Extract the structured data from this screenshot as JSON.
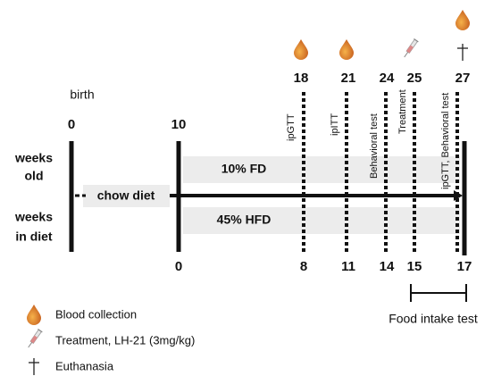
{
  "birth_label": "birth",
  "left_labels": {
    "weeks_old": [
      "weeks",
      "old"
    ],
    "weeks_in_diet": [
      "weeks",
      "in diet"
    ]
  },
  "weeks_old": [
    "0",
    "10",
    "18",
    "21",
    "24",
    "25",
    "27"
  ],
  "weeks_in_diet": [
    "0",
    "8",
    "11",
    "14",
    "15",
    "17"
  ],
  "diets": {
    "chow": "chow diet",
    "fd": "10% FD",
    "hfd": "45% HFD"
  },
  "events": [
    "ipGTT",
    "ipITT",
    "Behavioral test",
    "Treatment",
    "ipGTT, Behavioral test"
  ],
  "food_intake": "Food intake test",
  "legend": [
    "Blood collection",
    "Treatment, LH-21 (3mg/kg)",
    "Euthanasia"
  ]
}
